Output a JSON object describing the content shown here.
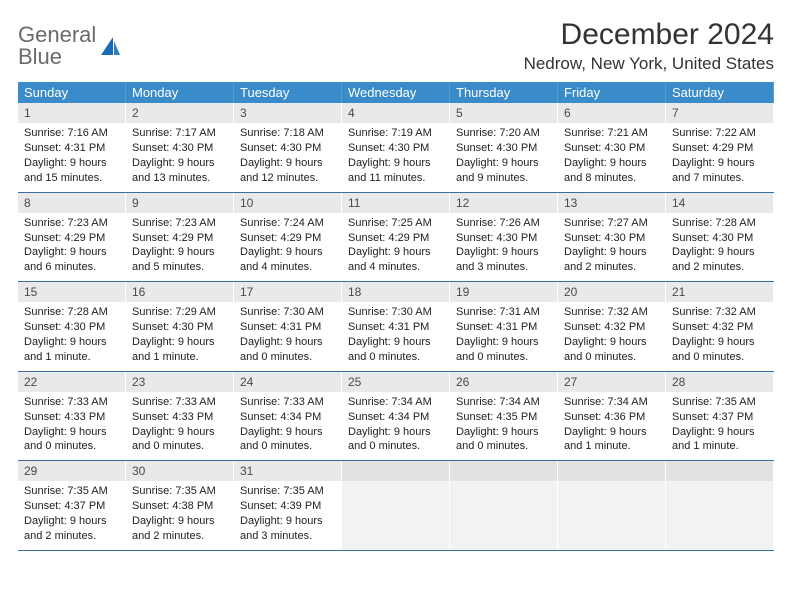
{
  "logo": {
    "line1": "General",
    "line2": "Blue"
  },
  "title": "December 2024",
  "location": "Nedrow, New York, United States",
  "colors": {
    "header_bg": "#3a8bc9",
    "header_text": "#ffffff",
    "daynum_bg": "#e9e9e9",
    "row_border": "#3a6fa0",
    "empty_bg": "#f2f2f2",
    "logo_gray": "#6b6b6b",
    "logo_blue": "#1b6bb3"
  },
  "weekdays": [
    "Sunday",
    "Monday",
    "Tuesday",
    "Wednesday",
    "Thursday",
    "Friday",
    "Saturday"
  ],
  "weeks": [
    [
      {
        "n": "1",
        "sr": "Sunrise: 7:16 AM",
        "ss": "Sunset: 4:31 PM",
        "dl": "Daylight: 9 hours and 15 minutes."
      },
      {
        "n": "2",
        "sr": "Sunrise: 7:17 AM",
        "ss": "Sunset: 4:30 PM",
        "dl": "Daylight: 9 hours and 13 minutes."
      },
      {
        "n": "3",
        "sr": "Sunrise: 7:18 AM",
        "ss": "Sunset: 4:30 PM",
        "dl": "Daylight: 9 hours and 12 minutes."
      },
      {
        "n": "4",
        "sr": "Sunrise: 7:19 AM",
        "ss": "Sunset: 4:30 PM",
        "dl": "Daylight: 9 hours and 11 minutes."
      },
      {
        "n": "5",
        "sr": "Sunrise: 7:20 AM",
        "ss": "Sunset: 4:30 PM",
        "dl": "Daylight: 9 hours and 9 minutes."
      },
      {
        "n": "6",
        "sr": "Sunrise: 7:21 AM",
        "ss": "Sunset: 4:30 PM",
        "dl": "Daylight: 9 hours and 8 minutes."
      },
      {
        "n": "7",
        "sr": "Sunrise: 7:22 AM",
        "ss": "Sunset: 4:29 PM",
        "dl": "Daylight: 9 hours and 7 minutes."
      }
    ],
    [
      {
        "n": "8",
        "sr": "Sunrise: 7:23 AM",
        "ss": "Sunset: 4:29 PM",
        "dl": "Daylight: 9 hours and 6 minutes."
      },
      {
        "n": "9",
        "sr": "Sunrise: 7:23 AM",
        "ss": "Sunset: 4:29 PM",
        "dl": "Daylight: 9 hours and 5 minutes."
      },
      {
        "n": "10",
        "sr": "Sunrise: 7:24 AM",
        "ss": "Sunset: 4:29 PM",
        "dl": "Daylight: 9 hours and 4 minutes."
      },
      {
        "n": "11",
        "sr": "Sunrise: 7:25 AM",
        "ss": "Sunset: 4:29 PM",
        "dl": "Daylight: 9 hours and 4 minutes."
      },
      {
        "n": "12",
        "sr": "Sunrise: 7:26 AM",
        "ss": "Sunset: 4:30 PM",
        "dl": "Daylight: 9 hours and 3 minutes."
      },
      {
        "n": "13",
        "sr": "Sunrise: 7:27 AM",
        "ss": "Sunset: 4:30 PM",
        "dl": "Daylight: 9 hours and 2 minutes."
      },
      {
        "n": "14",
        "sr": "Sunrise: 7:28 AM",
        "ss": "Sunset: 4:30 PM",
        "dl": "Daylight: 9 hours and 2 minutes."
      }
    ],
    [
      {
        "n": "15",
        "sr": "Sunrise: 7:28 AM",
        "ss": "Sunset: 4:30 PM",
        "dl": "Daylight: 9 hours and 1 minute."
      },
      {
        "n": "16",
        "sr": "Sunrise: 7:29 AM",
        "ss": "Sunset: 4:30 PM",
        "dl": "Daylight: 9 hours and 1 minute."
      },
      {
        "n": "17",
        "sr": "Sunrise: 7:30 AM",
        "ss": "Sunset: 4:31 PM",
        "dl": "Daylight: 9 hours and 0 minutes."
      },
      {
        "n": "18",
        "sr": "Sunrise: 7:30 AM",
        "ss": "Sunset: 4:31 PM",
        "dl": "Daylight: 9 hours and 0 minutes."
      },
      {
        "n": "19",
        "sr": "Sunrise: 7:31 AM",
        "ss": "Sunset: 4:31 PM",
        "dl": "Daylight: 9 hours and 0 minutes."
      },
      {
        "n": "20",
        "sr": "Sunrise: 7:32 AM",
        "ss": "Sunset: 4:32 PM",
        "dl": "Daylight: 9 hours and 0 minutes."
      },
      {
        "n": "21",
        "sr": "Sunrise: 7:32 AM",
        "ss": "Sunset: 4:32 PM",
        "dl": "Daylight: 9 hours and 0 minutes."
      }
    ],
    [
      {
        "n": "22",
        "sr": "Sunrise: 7:33 AM",
        "ss": "Sunset: 4:33 PM",
        "dl": "Daylight: 9 hours and 0 minutes."
      },
      {
        "n": "23",
        "sr": "Sunrise: 7:33 AM",
        "ss": "Sunset: 4:33 PM",
        "dl": "Daylight: 9 hours and 0 minutes."
      },
      {
        "n": "24",
        "sr": "Sunrise: 7:33 AM",
        "ss": "Sunset: 4:34 PM",
        "dl": "Daylight: 9 hours and 0 minutes."
      },
      {
        "n": "25",
        "sr": "Sunrise: 7:34 AM",
        "ss": "Sunset: 4:34 PM",
        "dl": "Daylight: 9 hours and 0 minutes."
      },
      {
        "n": "26",
        "sr": "Sunrise: 7:34 AM",
        "ss": "Sunset: 4:35 PM",
        "dl": "Daylight: 9 hours and 0 minutes."
      },
      {
        "n": "27",
        "sr": "Sunrise: 7:34 AM",
        "ss": "Sunset: 4:36 PM",
        "dl": "Daylight: 9 hours and 1 minute."
      },
      {
        "n": "28",
        "sr": "Sunrise: 7:35 AM",
        "ss": "Sunset: 4:37 PM",
        "dl": "Daylight: 9 hours and 1 minute."
      }
    ],
    [
      {
        "n": "29",
        "sr": "Sunrise: 7:35 AM",
        "ss": "Sunset: 4:37 PM",
        "dl": "Daylight: 9 hours and 2 minutes."
      },
      {
        "n": "30",
        "sr": "Sunrise: 7:35 AM",
        "ss": "Sunset: 4:38 PM",
        "dl": "Daylight: 9 hours and 2 minutes."
      },
      {
        "n": "31",
        "sr": "Sunrise: 7:35 AM",
        "ss": "Sunset: 4:39 PM",
        "dl": "Daylight: 9 hours and 3 minutes."
      },
      null,
      null,
      null,
      null
    ]
  ]
}
